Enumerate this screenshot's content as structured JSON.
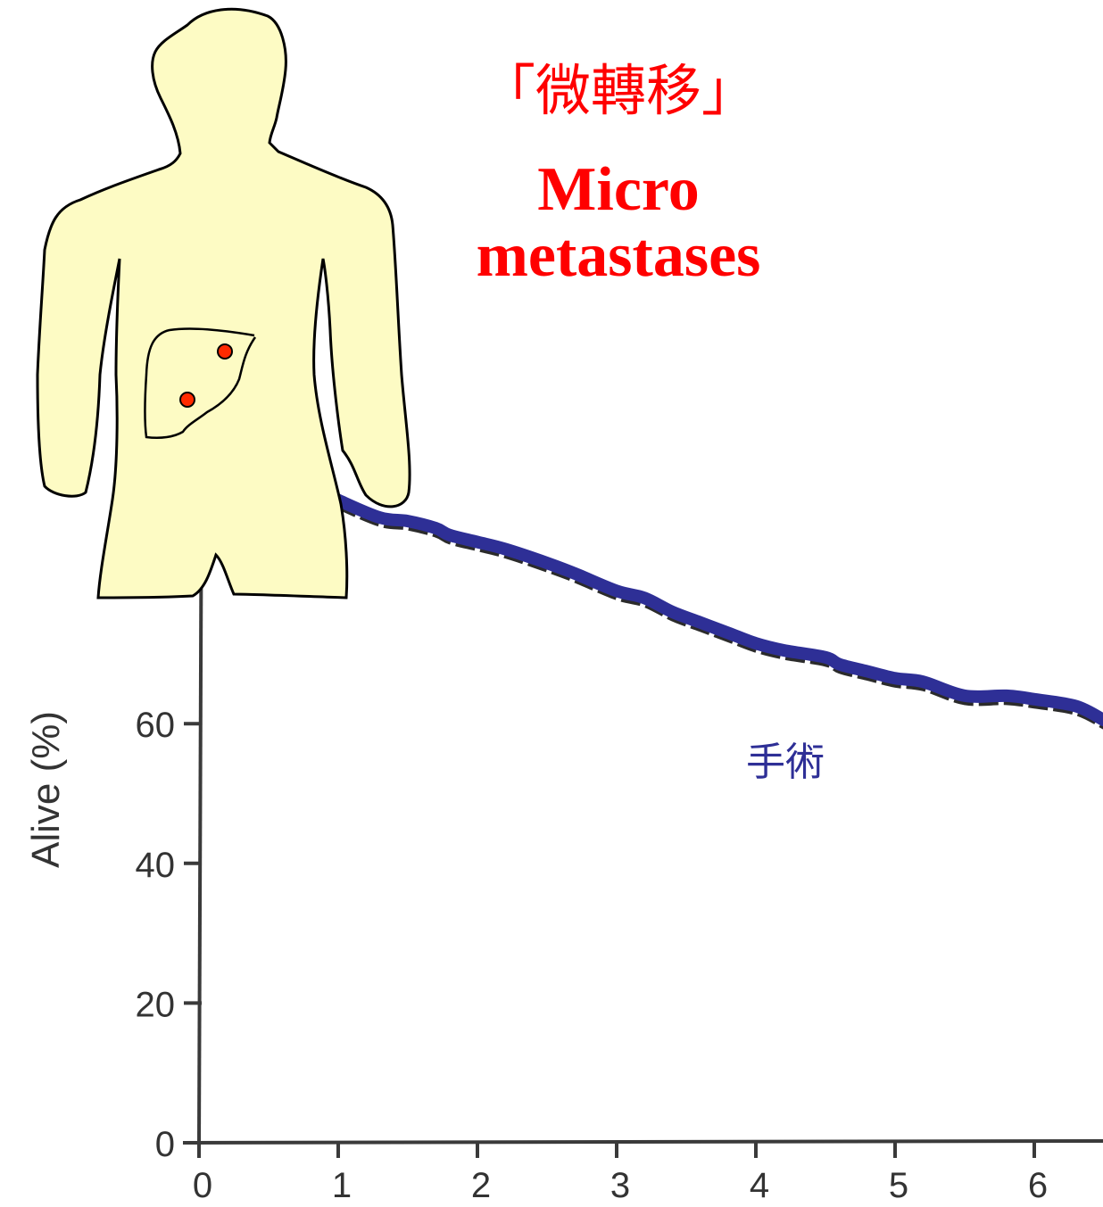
{
  "title": {
    "cjk": "「微轉移」",
    "english_line1": "Micro",
    "english_line2": "metastases"
  },
  "colors": {
    "title_red": "#ff0000",
    "curve_blue": "#2e2f96",
    "body_fill": "#fdfbc4",
    "lesion_red": "#ff2a00"
  },
  "icons": {
    "figure": "human-torso-with-liver-icon"
  },
  "chart_data": {
    "type": "line",
    "ylabel": "Alive (%)",
    "xlabel": "",
    "y_ticks": [
      "0",
      "20",
      "40",
      "60"
    ],
    "x_ticks": [
      "0",
      "1",
      "2",
      "3",
      "4",
      "5",
      "6"
    ],
    "ylim": [
      0,
      100
    ],
    "xlim": [
      0,
      6.5
    ],
    "grid": false,
    "series": [
      {
        "name": "手術",
        "x": [
          0,
          0.25,
          0.5,
          0.9,
          1.0,
          1.3,
          1.5,
          1.7,
          1.8,
          2.0,
          2.2,
          2.5,
          2.7,
          3.0,
          3.2,
          3.4,
          3.6,
          3.8,
          4.0,
          4.2,
          4.5,
          4.6,
          4.8,
          5.0,
          5.2,
          5.5,
          5.8,
          6.0,
          6.3,
          6.5
        ],
        "y": [
          100,
          98.5,
          97,
          93,
          92,
          89.5,
          89,
          88,
          87,
          86,
          85,
          83,
          81.5,
          79,
          78,
          76,
          74.5,
          73,
          71.5,
          70.5,
          69.5,
          68.5,
          67.5,
          66.5,
          66,
          64,
          64,
          63.5,
          62.5,
          60.5
        ]
      }
    ],
    "annotations": [
      "手術"
    ]
  }
}
